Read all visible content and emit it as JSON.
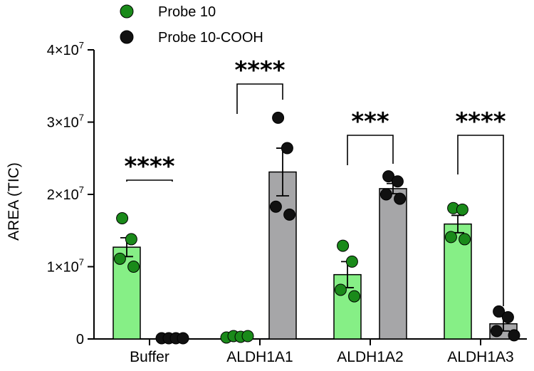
{
  "chart_data": {
    "type": "bar",
    "title": "",
    "xlabel": "",
    "ylabel": "AREA (TIC)",
    "ylim": [
      0,
      40000000
    ],
    "yticks": [
      {
        "value": 0,
        "label": "0"
      },
      {
        "value": 10000000,
        "label": "1×10",
        "exp": "7"
      },
      {
        "value": 20000000,
        "label": "2×10",
        "exp": "7"
      },
      {
        "value": 30000000,
        "label": "3×10",
        "exp": "7"
      },
      {
        "value": 40000000,
        "label": "4×10",
        "exp": "7"
      }
    ],
    "categories": [
      "Buffer",
      "ALDH1A1",
      "ALDH1A2",
      "ALDH1A3"
    ],
    "legend_position": "top-left",
    "series": [
      {
        "name": "Probe 10",
        "bar_color": "#86ef86",
        "point_color": "#1a8a1a",
        "values": [
          12700000,
          300000,
          8900000,
          15900000
        ],
        "errors": [
          1300000,
          150000,
          1800000,
          1200000
        ],
        "points": [
          [
            16700000,
            13800000,
            11100000,
            10000000
          ],
          [
            200000,
            400000,
            300000,
            400000
          ],
          [
            12900000,
            10700000,
            6800000,
            5900000
          ],
          [
            18100000,
            17900000,
            14100000,
            13800000
          ]
        ]
      },
      {
        "name": "Probe 10-COOH",
        "bar_color": "#a6a6a8",
        "point_color": "#111111",
        "values": [
          100000,
          23100000,
          20800000,
          2100000
        ],
        "errors": [
          50000,
          3300000,
          700000,
          1000000
        ],
        "points": [
          [
            100000,
            100000,
            100000,
            100000
          ],
          [
            30600000,
            26400000,
            18300000,
            17200000
          ],
          [
            22500000,
            21800000,
            20000000,
            19400000
          ],
          [
            3800000,
            3000000,
            1100000,
            500000
          ]
        ]
      }
    ],
    "significance": [
      "****",
      "****",
      "***",
      "****"
    ]
  }
}
